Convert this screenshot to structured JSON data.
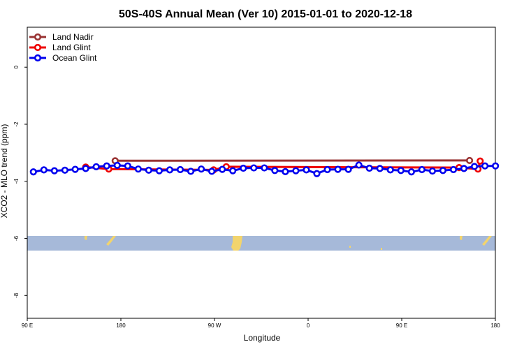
{
  "chart_data": {
    "type": "line",
    "title": "50S-40S Annual Mean (Ver 10)   2015-01-01 to 2020-12-18",
    "xlabel": "Longitude",
    "ylabel": "XCO2 - MLO trend (ppm)",
    "x_ticks": [
      {
        "value": 90,
        "label": "90 E"
      },
      {
        "value": 180,
        "label": "180"
      },
      {
        "value": 270,
        "label": "90 W"
      },
      {
        "value": 360,
        "label": "0"
      },
      {
        "value": 450,
        "label": "90 E"
      },
      {
        "value": 540,
        "label": "180"
      }
    ],
    "y_ticks": [
      0,
      -2,
      -4,
      -6,
      -8
    ],
    "xlim": [
      90,
      540
    ],
    "ylim": [
      -8.8,
      1.4
    ],
    "legend_position": "top-left",
    "background_band": {
      "y_top": -5.8,
      "y_bottom": -6.35,
      "ocean_color": "#a6b9d9",
      "land_color": "#f2d46d"
    },
    "series": [
      {
        "name": "Land Nadir",
        "color": "#993333",
        "x": [
          174.5,
          515.2
        ],
        "y": [
          -3.28,
          -3.27
        ]
      },
      {
        "name": "Land Glint",
        "color": "#ee0000",
        "x": [
          146.2,
          168.4,
          269.2,
          281.3,
          505.1,
          523.3,
          525.4
        ],
        "y": [
          -3.5,
          -3.57,
          -3.6,
          -3.49,
          -3.52,
          -3.57,
          -3.29
        ]
      },
      {
        "name": "Ocean Glint",
        "color": "#0000ee",
        "x": [
          95.9,
          106.0,
          116.1,
          126.2,
          136.1,
          146.2,
          156.3,
          166.4,
          176.5,
          186.6,
          196.7,
          206.8,
          216.9,
          227.0,
          237.1,
          247.2,
          257.3,
          267.4,
          277.5,
          287.6,
          297.7,
          307.8,
          317.9,
          328.0,
          338.1,
          348.2,
          358.3,
          368.4,
          378.5,
          388.6,
          398.7,
          408.8,
          418.9,
          429.0,
          439.1,
          449.2,
          459.3,
          469.4,
          479.5,
          489.6,
          499.7,
          509.8,
          519.9,
          530.0,
          540.1
        ],
        "y": [
          -3.67,
          -3.6,
          -3.63,
          -3.61,
          -3.58,
          -3.55,
          -3.49,
          -3.46,
          -3.44,
          -3.46,
          -3.57,
          -3.61,
          -3.63,
          -3.6,
          -3.59,
          -3.65,
          -3.57,
          -3.65,
          -3.58,
          -3.63,
          -3.54,
          -3.53,
          -3.53,
          -3.62,
          -3.66,
          -3.63,
          -3.6,
          -3.73,
          -3.59,
          -3.58,
          -3.58,
          -3.43,
          -3.54,
          -3.55,
          -3.6,
          -3.62,
          -3.67,
          -3.59,
          -3.64,
          -3.62,
          -3.59,
          -3.55,
          -3.48,
          -3.46,
          -3.46
        ]
      }
    ]
  }
}
